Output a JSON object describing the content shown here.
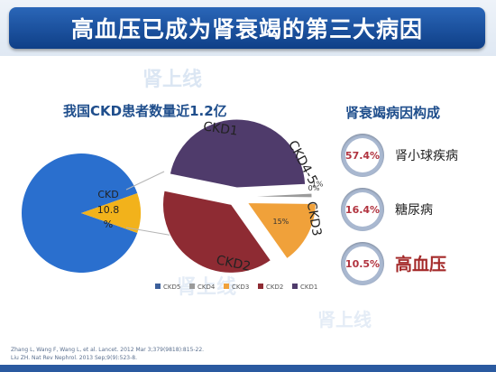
{
  "title": "高血压已成为肾衰竭的第三大病因",
  "watermark": {
    "brand": "肾上线"
  },
  "left_chart": {
    "title": "我国CKD患者数量近1.2亿",
    "slice_label_line1": "CKD",
    "slice_label_line2": "10.8",
    "slice_label_line3": "%"
  },
  "right_panel": {
    "title": "肾衰竭病因构成",
    "causes": [
      {
        "value": "57.4%",
        "name": "肾小球疾病"
      },
      {
        "value": "16.4%",
        "name": "糖尿病"
      },
      {
        "value": "10.5%",
        "name": "高血压"
      }
    ]
  },
  "footer": {
    "ref1": "Zhang L, Wang F, Wang  L, et al. Lancet. 2012  Mar  3;379(9818):815-22.",
    "ref2": "Liu ZH. Nat Rev Nephrol. 2013  Sep;9(9):523-8."
  },
  "chart_data": [
    {
      "type": "pie",
      "title": "我国CKD患者数量近1.2亿",
      "categories": [
        "",
        "CKD"
      ],
      "values": [
        89.2,
        10.8
      ],
      "colors": [
        "#2a6fce",
        "#f2b21b"
      ]
    },
    {
      "type": "pie",
      "categories": [
        "CKD5",
        "CKD4",
        "CKD3",
        "CKD2",
        "CKD1"
      ],
      "values": [
        0,
        1,
        15,
        38,
        46
      ],
      "slice_labels": [
        "0%",
        "1%",
        "15%",
        "",
        ""
      ],
      "colors": [
        "#3c5f9a",
        "#9b9b9b",
        "#f0a13a",
        "#8e2b33",
        "#4f3b6b"
      ],
      "legend": "bottom"
    }
  ]
}
